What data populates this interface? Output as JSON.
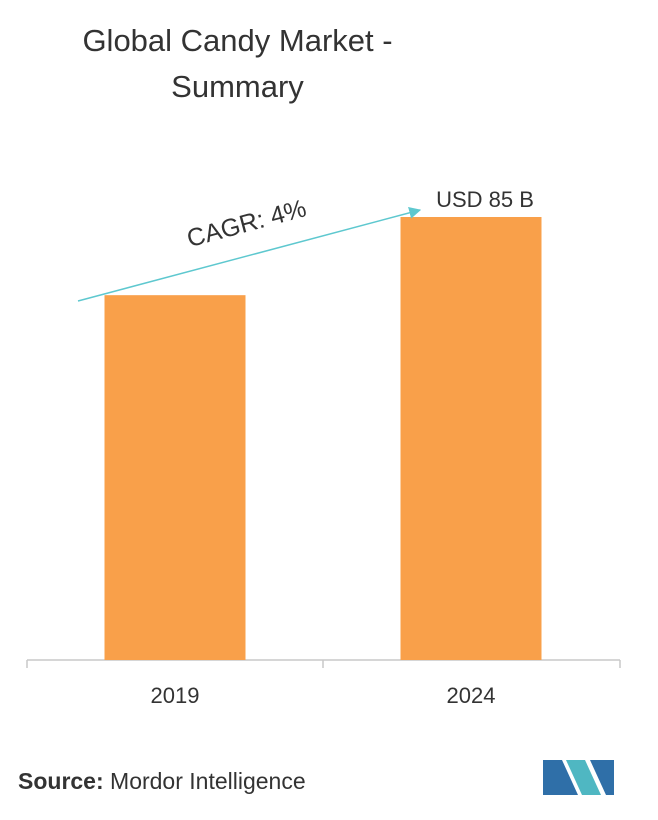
{
  "chart_data": {
    "type": "bar",
    "title": "Global Candy Market - Summary",
    "categories": [
      "2019",
      "2024"
    ],
    "values": [
      70,
      85
    ],
    "value_labels": [
      null,
      "USD 85 B"
    ],
    "color": "#f9a04a",
    "annotation": "CAGR: 4%",
    "annotation_color": "#5ec8cf",
    "source_label": "Source:",
    "source": "Mordor Intelligence"
  }
}
